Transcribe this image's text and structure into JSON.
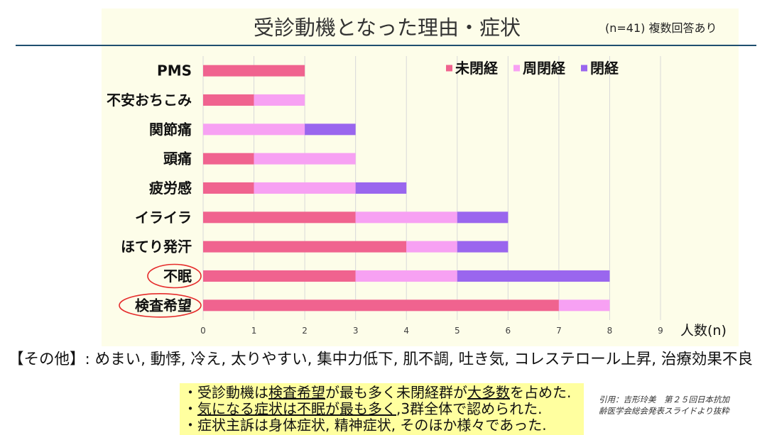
{
  "chart_data": {
    "type": "bar",
    "orientation": "horizontal",
    "stacked": true,
    "title": "受診動機となった理由・症状",
    "subtitle": "(n=41) 複数回答あり",
    "categories": [
      "PMS",
      "不安おちこみ",
      "関節痛",
      "頭痛",
      "疲労感",
      "イライラ",
      "ほてり発汗",
      "不眠",
      "検査希望"
    ],
    "series": [
      {
        "name": "未閉経",
        "color": "#f0638f",
        "values": [
          2,
          1,
          0,
          1,
          1,
          3,
          4,
          3,
          7
        ]
      },
      {
        "name": "周閉経",
        "color": "#f7a1f3",
        "values": [
          0,
          1,
          2,
          2,
          2,
          2,
          1,
          2,
          1
        ]
      },
      {
        "name": "閉経",
        "color": "#9a66ee",
        "values": [
          0,
          0,
          1,
          0,
          1,
          1,
          1,
          3,
          0
        ]
      }
    ],
    "xlabel": "人数(n)",
    "xlim": [
      0,
      9
    ],
    "xticks": [
      0,
      1,
      2,
      3,
      4,
      5,
      6,
      7,
      8,
      9
    ],
    "grid": "vertical",
    "legend": "top-right",
    "highlighted_categories": [
      "不眠",
      "検査希望"
    ],
    "highlight_color": "#e52b2b"
  },
  "slide": {
    "other_reasons": "【その他】: めまい, 動悸, 冷え, 太りやすい, 集中力低下, 肌不調, 吐き気, コレステロール上昇, 治療効果不良",
    "summary": [
      [
        "・受診動機は",
        "検査希望",
        "が最も多く未閉経群が",
        "大多数",
        "を占めた."
      ],
      [
        "・",
        "気になる症状は不眠が最も多く",
        ",3群全体で認められた."
      ],
      [
        "・症状主訴は身体症状, 精神症状, そのほか様々であった."
      ]
    ],
    "citation": [
      "引用：吉形玲美　第２５回日本抗加",
      "齢医学会総会発表スライドより抜粋"
    ],
    "colors": {
      "panel": "#fdfde9",
      "summary_box": "#ffff9f",
      "divider": "#1f4f6f"
    }
  }
}
